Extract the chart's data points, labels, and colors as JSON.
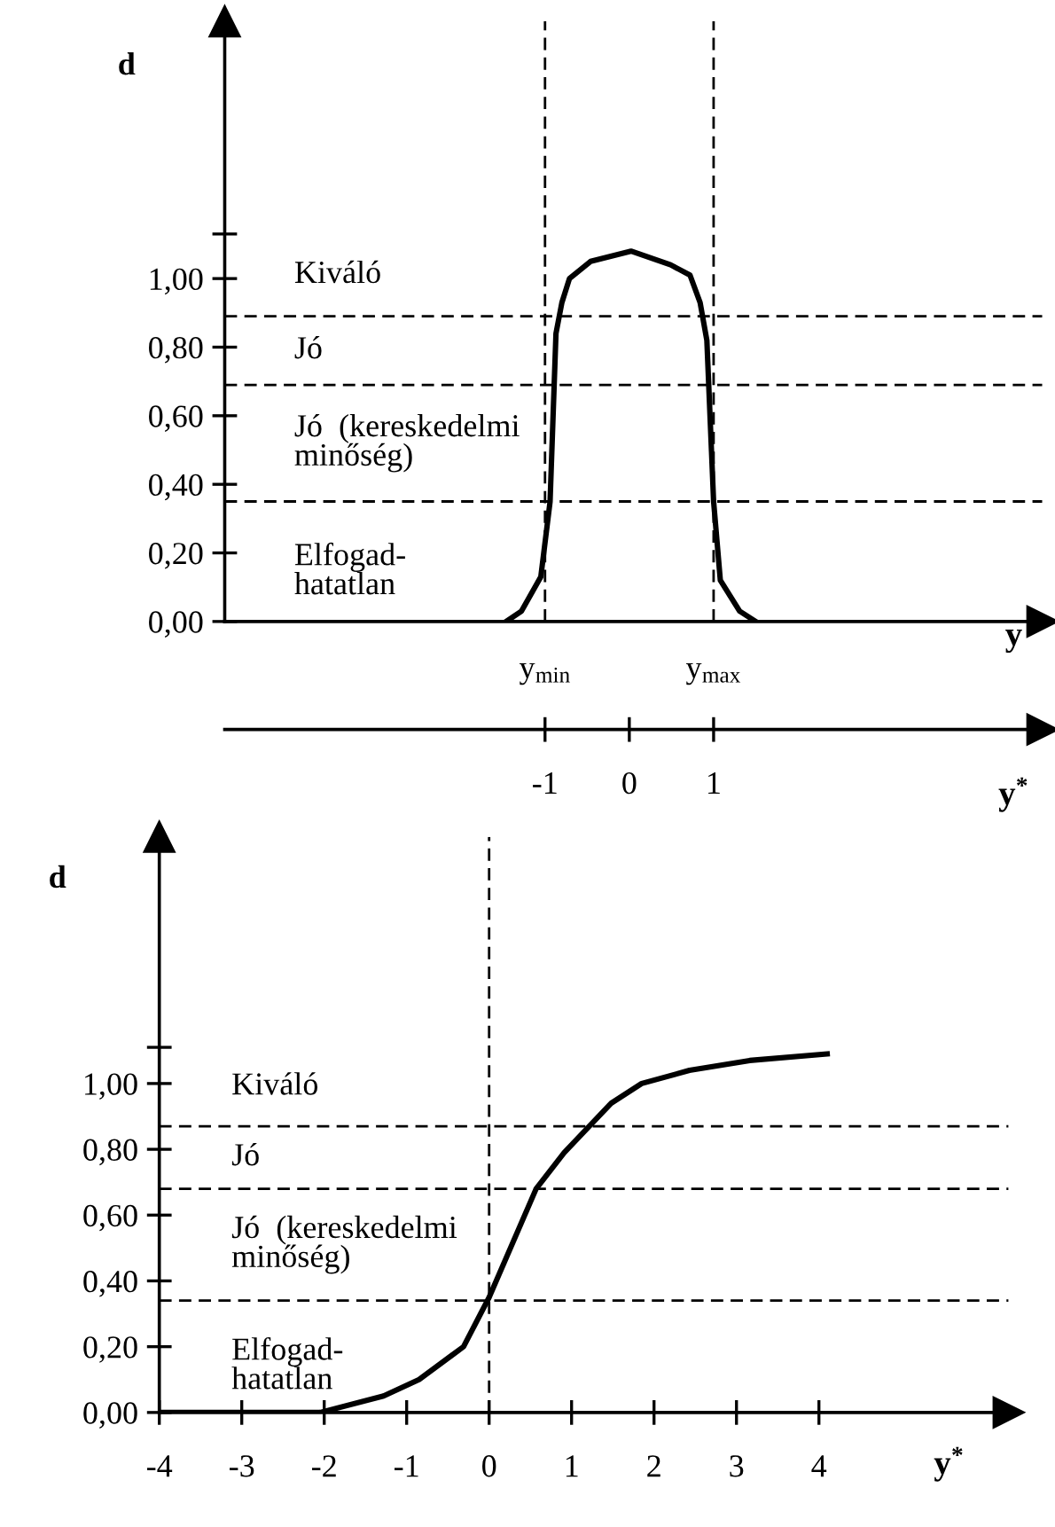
{
  "chart_data": [
    {
      "type": "line",
      "xlabel": "y$^{*}$",
      "ylabel": "d",
      "x2label": "y",
      "line_style": "solid",
      "xlim": [
        -4.8,
        4.9
      ],
      "xticks": [
        -1,
        0,
        1
      ],
      "ylim": [
        0,
        1.75
      ],
      "yticks": [
        {
          "value": 0,
          "label": "0,00"
        },
        {
          "value": 0.2,
          "label": "0,20"
        },
        {
          "value": 0.4,
          "label": "0,40"
        },
        {
          "value": 0.6,
          "label": "0,60"
        },
        {
          "value": 0.8,
          "label": "0,80"
        },
        {
          "value": 1.0,
          "label": "1,00"
        },
        {
          "value": 1.13,
          "label": null
        }
      ],
      "series": [
        {
          "color": "#000000",
          "x": [
            -1.46,
            -1.28,
            -1.05,
            -0.94,
            -0.87,
            -0.8,
            -0.71,
            -0.46,
            0.02,
            0.49,
            0.72,
            0.84,
            0.92,
            1.0,
            1.08,
            1.31,
            1.5
          ],
          "values": [
            0,
            0.03,
            0.13,
            0.35,
            0.84,
            0.93,
            1.0,
            1.05,
            1.08,
            1.04,
            1.01,
            0.93,
            0.82,
            0.35,
            0.12,
            0.03,
            0
          ]
        }
      ],
      "ref_lines": [
        {
          "axis": "y",
          "value": 0.89,
          "color": "#000000",
          "line_style": "dashed"
        },
        {
          "axis": "y",
          "value": 0.69,
          "color": "#000000",
          "line_style": "dashed"
        },
        {
          "axis": "y",
          "value": 0.35,
          "color": "#000000",
          "line_style": "dashed"
        },
        {
          "axis": "x",
          "value": -1,
          "color": "#000000",
          "line_style": "dashed"
        },
        {
          "axis": "x",
          "value": 1,
          "color": "#000000",
          "line_style": "dashed"
        }
      ],
      "annotations": [
        "Kiváló",
        "Jó",
        "Jó  (kereskedelmi\nminőség)",
        "Elfogad-\nhatatlan",
        {
          "text": "y$_{min}$",
          "x": -1,
          "y": 0
        },
        {
          "text": "y$_{max}$",
          "x": 1,
          "y": 0
        }
      ]
    },
    {
      "type": "line",
      "xlabel": "y$^{*}$",
      "ylabel": "d",
      "line_style": "solid",
      "xlim": [
        -4,
        6.3
      ],
      "xticks": [
        -4,
        -3,
        -2,
        -1,
        0,
        1,
        2,
        3,
        4
      ],
      "ylim": [
        0,
        1.75
      ],
      "yticks": [
        {
          "value": 0,
          "label": "0,00"
        },
        {
          "value": 0.2,
          "label": "0,20"
        },
        {
          "value": 0.4,
          "label": "0,40"
        },
        {
          "value": 0.6,
          "label": "0,60"
        },
        {
          "value": 0.8,
          "label": "0,80"
        },
        {
          "value": 1.0,
          "label": "1,00"
        },
        {
          "value": 1.11,
          "label": null
        }
      ],
      "series": [
        {
          "color": "#000000",
          "x": [
            -4,
            -2.05,
            -1.28,
            -0.85,
            -0.31,
            0,
            0.57,
            0.91,
            1.48,
            1.85,
            2.43,
            3.16,
            4.1
          ],
          "values": [
            0,
            0,
            0.05,
            0.1,
            0.2,
            0.35,
            0.68,
            0.79,
            0.94,
            1.0,
            1.04,
            1.07,
            1.09
          ]
        }
      ],
      "ref_lines": [
        {
          "axis": "y",
          "value": 0.87,
          "color": "#000000",
          "line_style": "dashed"
        },
        {
          "axis": "y",
          "value": 0.68,
          "color": "#000000",
          "line_style": "dashed"
        },
        {
          "axis": "y",
          "value": 0.34,
          "color": "#000000",
          "line_style": "dashed"
        },
        {
          "axis": "x",
          "value": 0,
          "color": "#000000",
          "line_style": "dashed"
        }
      ],
      "annotations": [
        "Kiváló",
        "Jó",
        "Jó  (kereskedelmi\nminőség)",
        "Elfogad-\nhatatlan"
      ]
    }
  ]
}
